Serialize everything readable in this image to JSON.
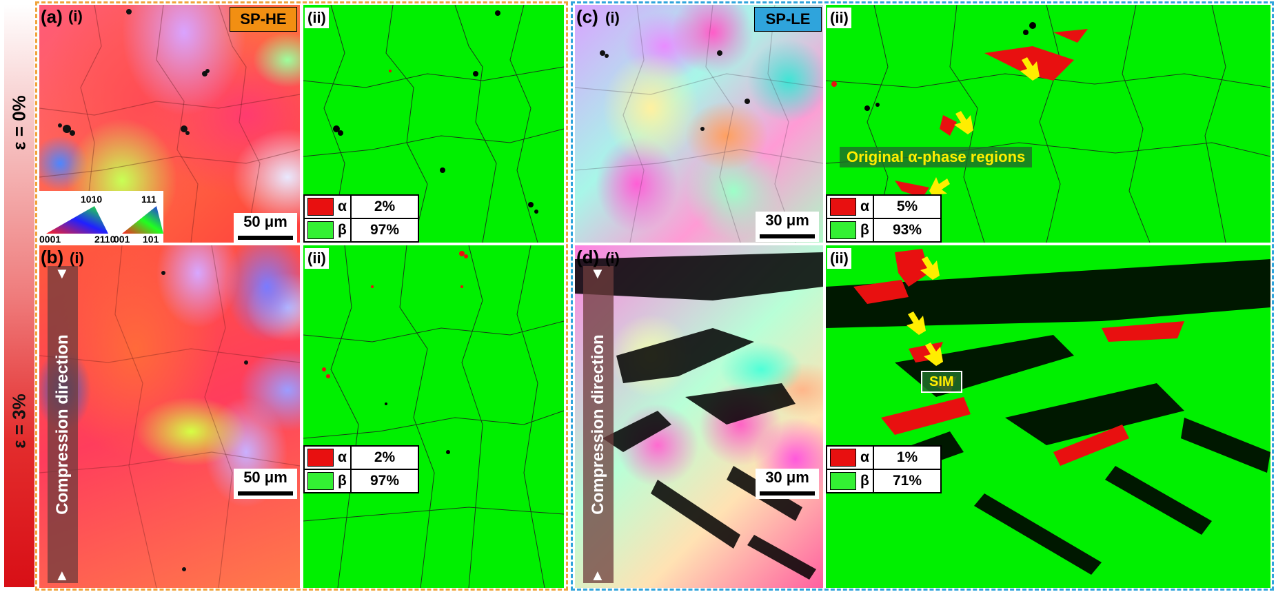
{
  "strain_labels": {
    "top": "ε = 0%",
    "bottom": "ε = 3%"
  },
  "groups": [
    {
      "name": "SP-HE",
      "color": "#f0a33c"
    },
    {
      "name": "SP-LE",
      "color": "#2fa4dc"
    }
  ],
  "panels": {
    "a": {
      "letter": "(a)",
      "sub_i": "(i)",
      "sub_ii": "(ii)",
      "sample": "SP-HE",
      "sample_color": "#f28f12",
      "scale": "50 μm",
      "legend": [
        {
          "phase": "α",
          "value": "2%",
          "color": "#e81010"
        },
        {
          "phase": "β",
          "value": "97%",
          "color": "#33f033"
        }
      ],
      "ipf_key": {
        "hex": {
          "top": "10$\\bar{1}$0",
          "top_text": "1010",
          "left": "0001",
          "right": "2110"
        },
        "cubic": {
          "top": "111",
          "left": "001",
          "right": "101"
        }
      }
    },
    "b": {
      "letter": "(b)",
      "sub_i": "(i)",
      "sub_ii": "(ii)",
      "scale": "50 μm",
      "compression": "Compression direction",
      "legend": [
        {
          "phase": "α",
          "value": "2%",
          "color": "#e81010"
        },
        {
          "phase": "β",
          "value": "97%",
          "color": "#33f033"
        }
      ]
    },
    "c": {
      "letter": "(c)",
      "sub_i": "(i)",
      "sub_ii": "(ii)",
      "sample": "SP-LE",
      "sample_color": "#2fa4dc",
      "scale": "30 μm",
      "annotation": "Original α-phase regions",
      "legend": [
        {
          "phase": "α",
          "value": "5%",
          "color": "#e81010"
        },
        {
          "phase": "β",
          "value": "93%",
          "color": "#33f033"
        }
      ]
    },
    "d": {
      "letter": "(d)",
      "sub_i": "(i)",
      "sub_ii": "(ii)",
      "scale": "30 μm",
      "compression": "Compression direction",
      "annotation": "SIM",
      "legend": [
        {
          "phase": "α",
          "value": "1%",
          "color": "#e81010"
        },
        {
          "phase": "β",
          "value": "71%",
          "color": "#33f033"
        }
      ]
    }
  },
  "colors": {
    "beta_phase": "#00f000",
    "alpha_phase": "#e81010",
    "arrow": "#ffee00"
  }
}
